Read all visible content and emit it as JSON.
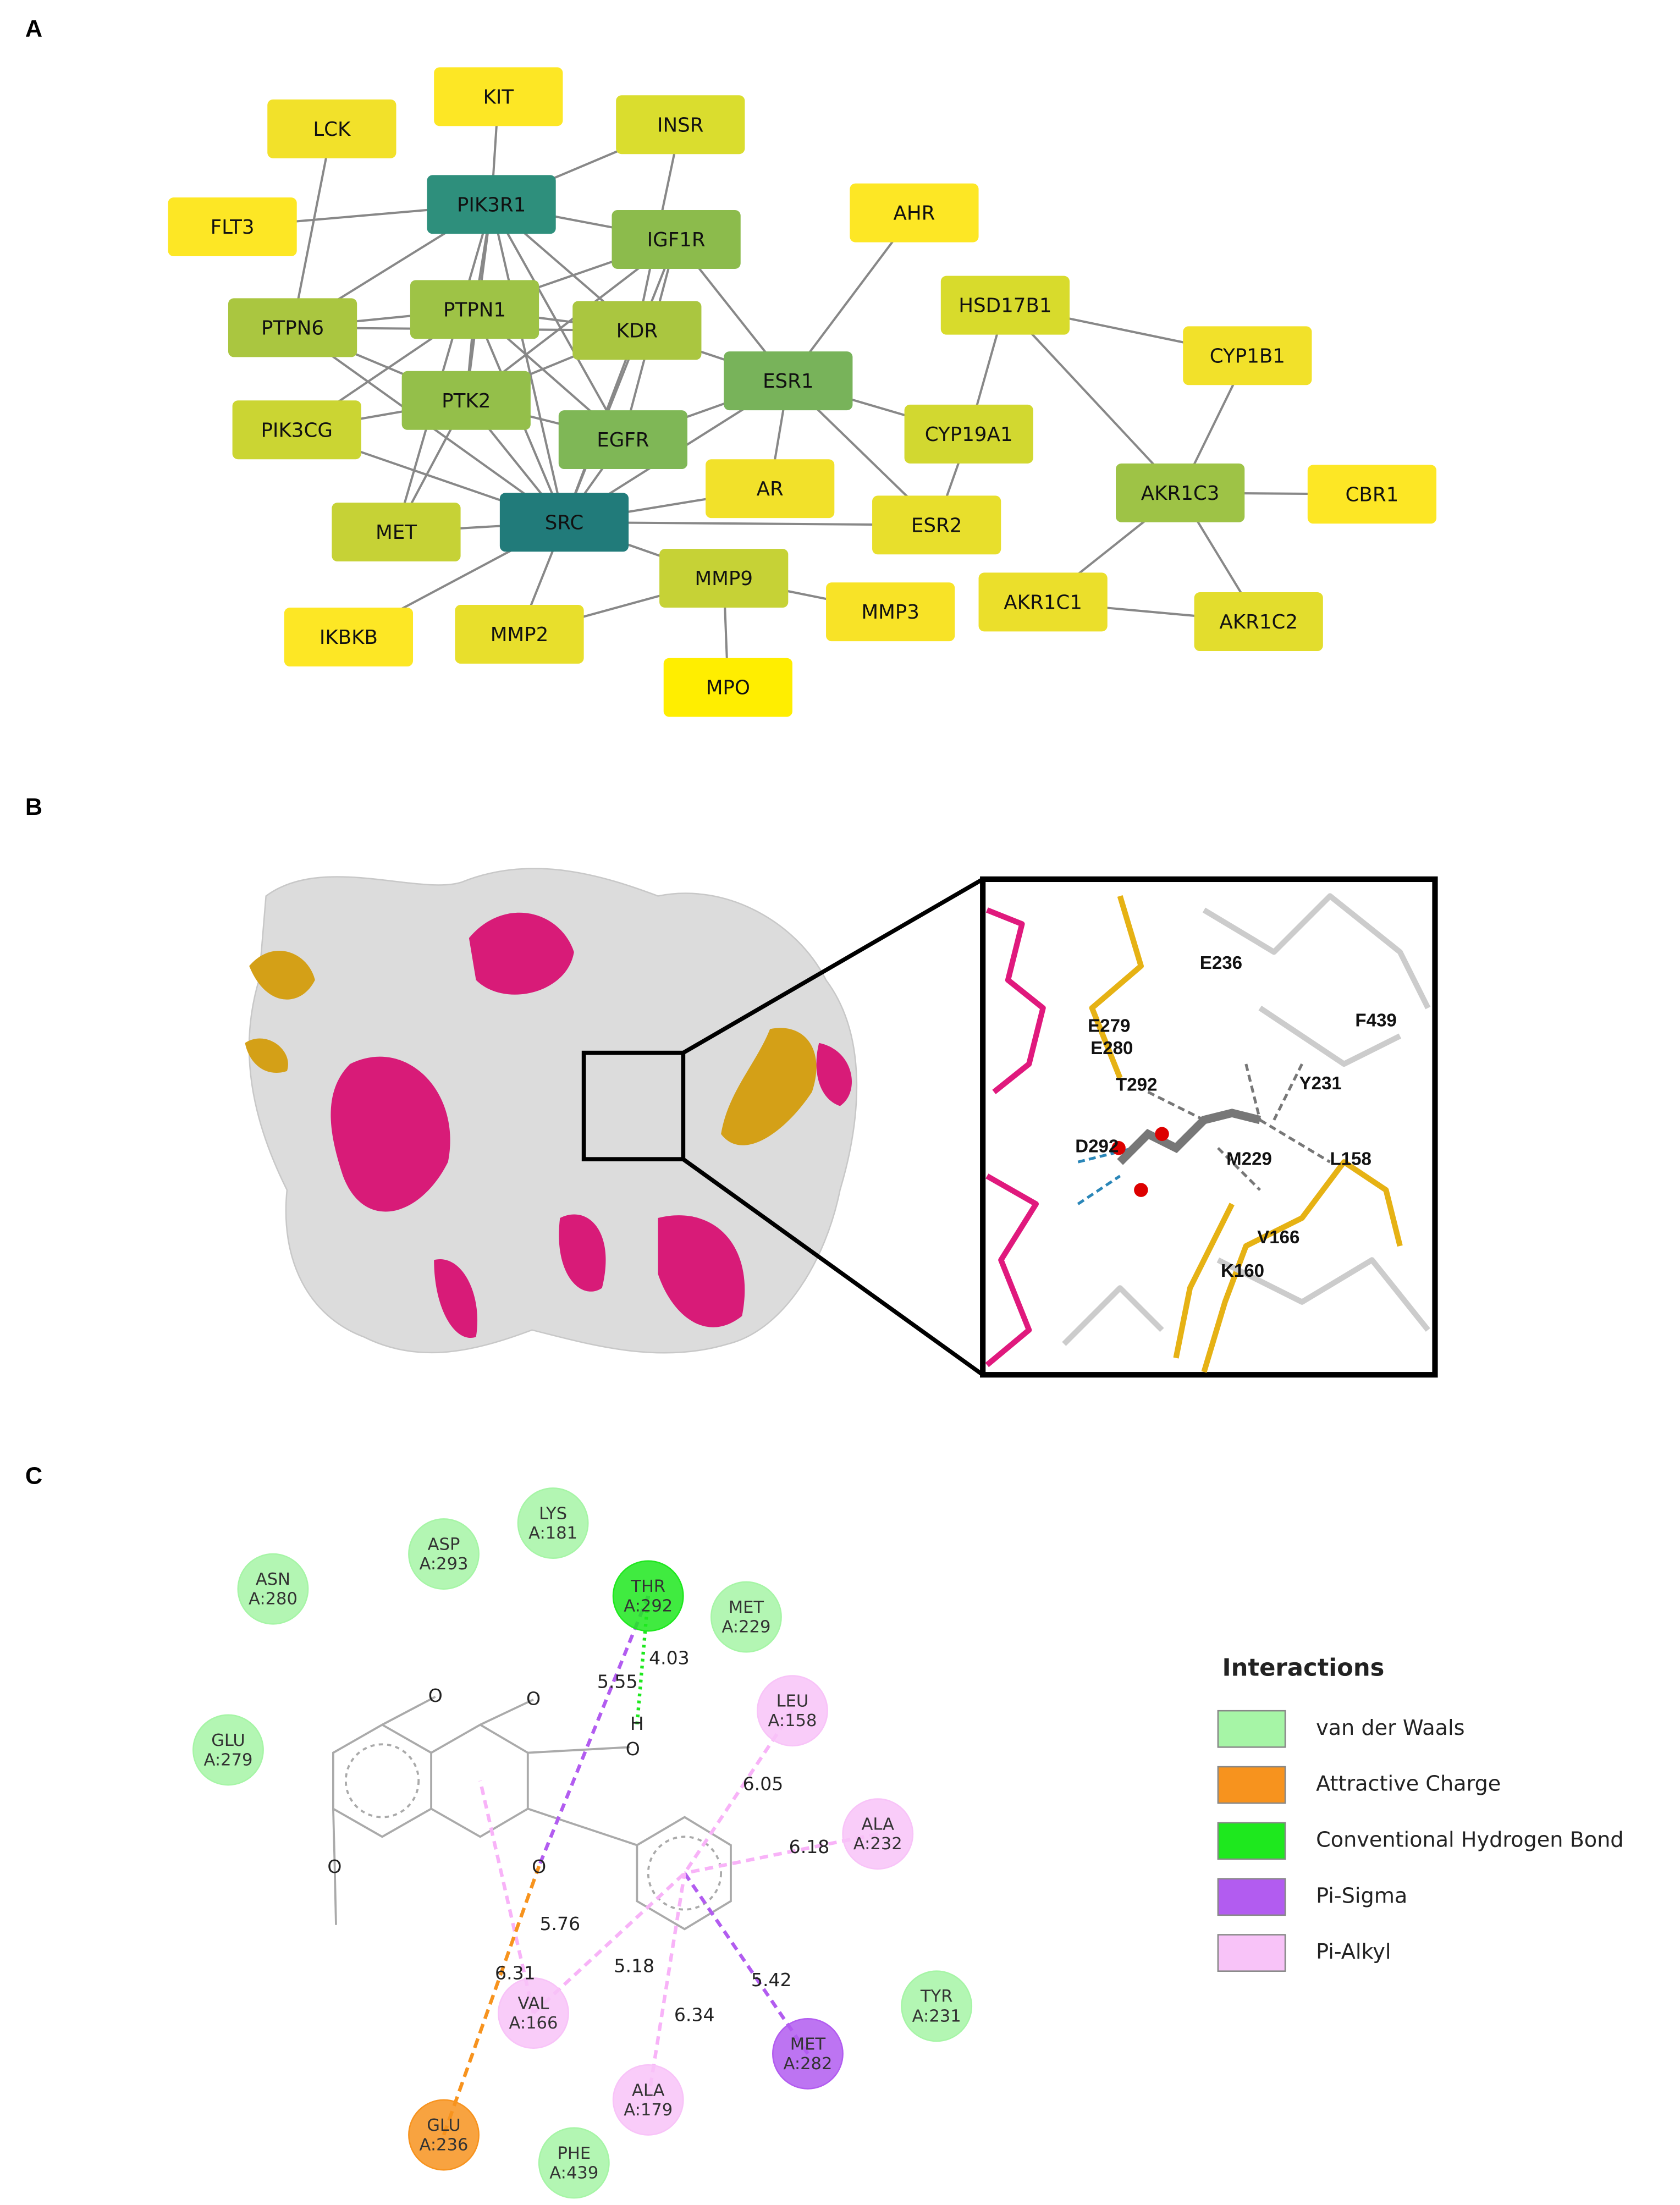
{
  "panels": {
    "a": "A",
    "b": "B",
    "c": "C"
  },
  "network": {
    "nodes": [
      {
        "label": "KIT",
        "color": "#fde725"
      },
      {
        "label": "LCK",
        "color": "#f2e12a"
      },
      {
        "label": "INSR",
        "color": "#dadd2e"
      },
      {
        "label": "PIK3R1",
        "color": "#2e8f7c"
      },
      {
        "label": "FLT3",
        "color": "#fde725"
      },
      {
        "label": "IGF1R",
        "color": "#8cbb4c"
      },
      {
        "label": "AHR",
        "color": "#fde725"
      },
      {
        "label": "HSD17B1",
        "color": "#d8db2c"
      },
      {
        "label": "CYP1B1",
        "color": "#f2e12a"
      },
      {
        "label": "PTPN6",
        "color": "#aac640"
      },
      {
        "label": "PTPN1",
        "color": "#9ec346"
      },
      {
        "label": "KDR",
        "color": "#aac640"
      },
      {
        "label": "ESR1",
        "color": "#78b35a"
      },
      {
        "label": "PIK3CG",
        "color": "#cbd533"
      },
      {
        "label": "PTK2",
        "color": "#94bf4a"
      },
      {
        "label": "EGFR",
        "color": "#7fb756"
      },
      {
        "label": "CYP19A1",
        "color": "#d2d830"
      },
      {
        "label": "AKR1C3",
        "color": "#9ec346"
      },
      {
        "label": "CBR1",
        "color": "#fde725"
      },
      {
        "label": "AR",
        "color": "#f2e12a"
      },
      {
        "label": "ESR2",
        "color": "#e8df2c"
      },
      {
        "label": "MET",
        "color": "#c6d236"
      },
      {
        "label": "SRC",
        "color": "#217b7a"
      },
      {
        "label": "MMP9",
        "color": "#c6d236"
      },
      {
        "label": "AKR1C1",
        "color": "#ebdf2b"
      },
      {
        "label": "AKR1C2",
        "color": "#e3dd2d"
      },
      {
        "label": "MMP3",
        "color": "#f8e327"
      },
      {
        "label": "IKBKB",
        "color": "#fde725"
      },
      {
        "label": "MMP2",
        "color": "#e8df2c"
      },
      {
        "label": "MPO",
        "color": "#ffee00"
      }
    ]
  },
  "structure": {
    "residues": [
      "E236",
      "E279",
      "E280",
      "F439",
      "T292",
      "Y231",
      "D292",
      "M229",
      "L158",
      "V166",
      "K160"
    ]
  },
  "interactions": {
    "residues": [
      {
        "name": "ASN",
        "chain": "A:280",
        "type": 0
      },
      {
        "name": "ASP",
        "chain": "A:293",
        "type": 0
      },
      {
        "name": "LYS",
        "chain": "A:181",
        "type": 0
      },
      {
        "name": "THR",
        "chain": "A:292",
        "type": 2
      },
      {
        "name": "MET",
        "chain": "A:229",
        "type": 0
      },
      {
        "name": "GLU",
        "chain": "A:279",
        "type": 0
      },
      {
        "name": "LEU",
        "chain": "A:158",
        "type": 4
      },
      {
        "name": "ALA",
        "chain": "A:232",
        "type": 4
      },
      {
        "name": "VAL",
        "chain": "A:166",
        "type": 4
      },
      {
        "name": "MET",
        "chain": "A:282",
        "type": 3
      },
      {
        "name": "TYR",
        "chain": "A:231",
        "type": 0
      },
      {
        "name": "GLU",
        "chain": "A:236",
        "type": 1
      },
      {
        "name": "ALA",
        "chain": "A:179",
        "type": 4
      },
      {
        "name": "PHE",
        "chain": "A:439",
        "type": 0
      }
    ],
    "atoms": [
      "O",
      "O",
      "O",
      "H",
      "O",
      "O"
    ],
    "distances": [
      4.03,
      5.55,
      6.05,
      6.18,
      5.76,
      5.18,
      5.42,
      6.31,
      6.34
    ],
    "legend": {
      "title": "Interactions",
      "items": [
        {
          "label": "van der Waals",
          "color": "#a6f5a6"
        },
        {
          "label": "Attractive Charge",
          "color": "#f7931e"
        },
        {
          "label": "Conventional Hydrogen Bond",
          "color": "#1ee81e"
        },
        {
          "label": "Pi-Sigma",
          "color": "#b25cf0"
        },
        {
          "label": "Pi-Alkyl",
          "color": "#f8c3f8"
        }
      ]
    }
  }
}
